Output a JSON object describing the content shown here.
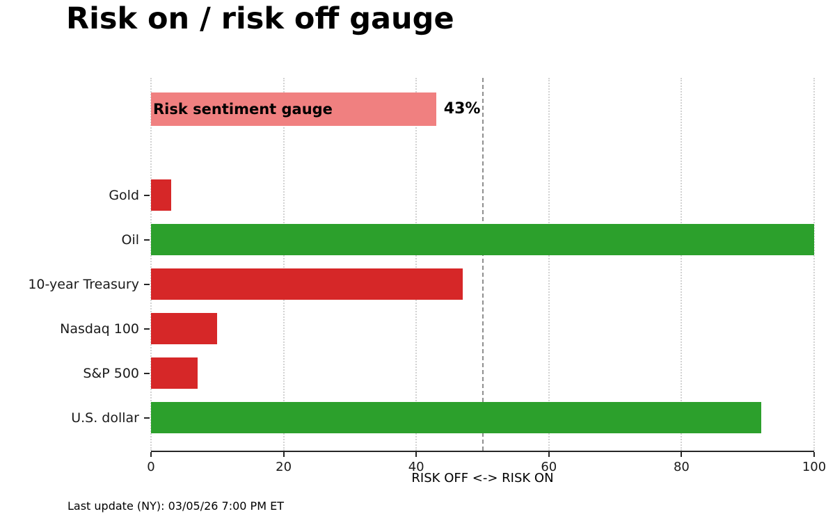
{
  "chart_data": {
    "type": "bar",
    "orientation": "horizontal",
    "title": "Risk on / risk off gauge",
    "xlabel": "RISK OFF <-> RISK ON",
    "xlim": [
      0,
      100
    ],
    "xticks": [
      0,
      20,
      40,
      60,
      80,
      100
    ],
    "grid": "vertical dotted gridlines at each x tick",
    "legend": "none",
    "reference_line": {
      "x": 50,
      "style": "dashed",
      "color": "#8f8f8f"
    },
    "gauge_bar": {
      "label": "Risk sentiment gauge",
      "value": 43,
      "value_label": "43%",
      "color": "#f08080"
    },
    "categories": [
      "Gold",
      "Oil",
      "10-year Treasury",
      "Nasdaq 100",
      "S&P 500",
      "U.S. dollar"
    ],
    "values": [
      3,
      100,
      47,
      10,
      7,
      92
    ],
    "bar_colors": [
      "#d62728",
      "#2ca02c",
      "#d62728",
      "#d62728",
      "#d62728",
      "#2ca02c"
    ],
    "colors": {
      "risk_off": "#d62728",
      "risk_on": "#2ca02c",
      "gauge": "#f08080"
    }
  },
  "footer": {
    "text": "Last update (NY): 03/05/26 7:00 PM ET"
  }
}
